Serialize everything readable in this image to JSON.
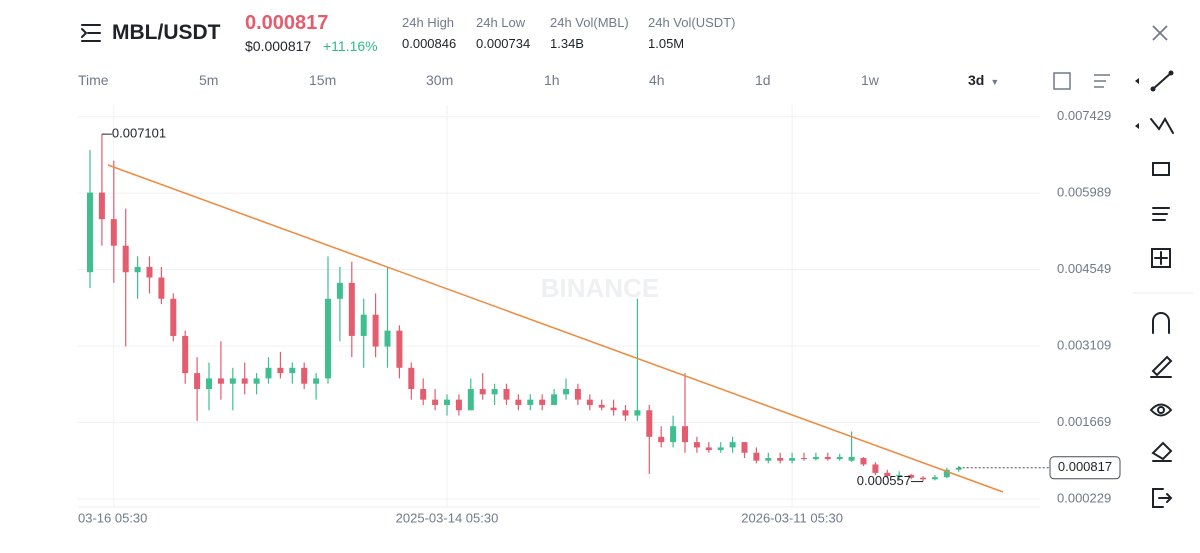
{
  "header": {
    "symbol": "MBL/USDT",
    "price": "0.000817",
    "price_usd": "$0.000817",
    "change": "+11.16%",
    "stats": [
      {
        "label": "24h High",
        "value": "0.000846"
      },
      {
        "label": "24h Low",
        "value": "0.000734"
      },
      {
        "label": "24h Vol(MBL)",
        "value": "1.34B"
      },
      {
        "label": "24h Vol(USDT)",
        "value": "1.05M"
      }
    ]
  },
  "intervals": [
    "Time",
    "5m",
    "15m",
    "30m",
    "1h",
    "4h",
    "1d",
    "1w",
    "3d"
  ],
  "chart_data": {
    "type": "candlestick",
    "watermark": "BINANCE",
    "categories": [
      null,
      null,
      "03-16 05:30",
      null,
      null,
      null,
      null,
      null,
      null,
      null,
      null,
      null,
      null,
      null,
      null,
      null,
      null,
      null,
      null,
      null,
      null,
      null,
      null,
      null,
      null,
      null,
      null,
      null,
      null,
      null,
      "2025-03-14 05:30",
      null,
      null,
      null,
      null,
      null,
      null,
      null,
      null,
      null,
      null,
      null,
      null,
      null,
      null,
      null,
      null,
      null,
      null,
      null,
      null,
      null,
      null,
      null,
      null,
      null,
      null,
      null,
      null,
      "2026-03-11 05:30",
      null,
      null,
      null,
      null,
      null,
      null,
      null,
      null,
      null,
      null,
      null,
      null,
      null,
      null
    ],
    "open": [
      0.0045,
      0.006,
      0.0055,
      0.005,
      0.0045,
      0.0046,
      0.0044,
      0.004,
      0.0033,
      0.0026,
      0.0023,
      0.0025,
      0.0024,
      0.0025,
      0.0024,
      0.0025,
      0.0027,
      0.0026,
      0.0027,
      0.0024,
      0.0025,
      0.004,
      0.0043,
      0.0033,
      0.0037,
      0.0031,
      0.0034,
      0.0027,
      0.0023,
      0.0021,
      0.002,
      0.0021,
      0.0019,
      0.0023,
      0.0022,
      0.0023,
      0.0021,
      0.002,
      0.0021,
      0.002,
      0.0022,
      0.0023,
      0.0021,
      0.002,
      0.00195,
      0.0019,
      0.0018,
      0.0019,
      0.0014,
      0.0013,
      0.0016,
      0.0013,
      0.0012,
      0.00115,
      0.0012,
      0.0013,
      0.0011,
      0.00095,
      0.001,
      0.00095,
      0.001,
      0.00098,
      0.00102,
      0.00098,
      0.00095,
      0.001,
      0.00088,
      0.00072,
      0.00066,
      0.00068,
      0.00063,
      0.0006,
      0.00064,
      0.00078
    ],
    "high": [
      0.0068,
      0.007101,
      0.0066,
      0.0057,
      0.0048,
      0.0048,
      0.0046,
      0.0041,
      0.0034,
      0.0029,
      0.0028,
      0.0032,
      0.0027,
      0.0028,
      0.0026,
      0.0029,
      0.003,
      0.0028,
      0.0028,
      0.0026,
      0.0048,
      0.0046,
      0.0047,
      0.004,
      0.0041,
      0.0046,
      0.0035,
      0.0028,
      0.0025,
      0.0023,
      0.0022,
      0.0022,
      0.0025,
      0.0026,
      0.0024,
      0.0024,
      0.0022,
      0.0022,
      0.0022,
      0.0023,
      0.0025,
      0.0024,
      0.0022,
      0.0021,
      0.0021,
      0.002,
      0.004,
      0.002,
      0.0016,
      0.0018,
      0.0026,
      0.0014,
      0.0013,
      0.0013,
      0.0014,
      0.0013,
      0.0012,
      0.0011,
      0.0011,
      0.0011,
      0.0011,
      0.0011,
      0.0011,
      0.00108,
      0.0015,
      0.00102,
      0.00092,
      0.00078,
      0.00075,
      0.0007,
      0.00066,
      0.00068,
      0.00082,
      0.00085
    ],
    "low": [
      0.0042,
      0.005,
      0.0043,
      0.0031,
      0.004,
      0.0041,
      0.0039,
      0.0032,
      0.0024,
      0.0017,
      0.0019,
      0.0021,
      0.0019,
      0.0022,
      0.0022,
      0.0024,
      0.0025,
      0.0024,
      0.0023,
      0.0021,
      0.0024,
      0.0032,
      0.0029,
      0.0027,
      0.0029,
      0.0027,
      0.0025,
      0.0021,
      0.002,
      0.0019,
      0.0018,
      0.0018,
      0.0019,
      0.0021,
      0.002,
      0.002,
      0.0019,
      0.0019,
      0.0019,
      0.002,
      0.0021,
      0.002,
      0.0019,
      0.0019,
      0.0018,
      0.0017,
      0.0017,
      0.0007,
      0.0012,
      0.0012,
      0.0011,
      0.0011,
      0.0011,
      0.0011,
      0.0011,
      0.001,
      0.0009,
      0.0009,
      0.0009,
      0.0009,
      0.00095,
      0.00095,
      0.00095,
      0.00095,
      0.00093,
      0.00085,
      0.00068,
      0.00062,
      0.0006,
      0.0006,
      0.000557,
      0.00058,
      0.00062,
      0.00074
    ],
    "close": [
      0.006,
      0.0055,
      0.005,
      0.0045,
      0.0046,
      0.0044,
      0.004,
      0.0033,
      0.0026,
      0.0023,
      0.0025,
      0.0024,
      0.0025,
      0.0024,
      0.0025,
      0.0027,
      0.0026,
      0.0027,
      0.0024,
      0.0025,
      0.004,
      0.0043,
      0.0033,
      0.0037,
      0.0031,
      0.0034,
      0.0027,
      0.0023,
      0.0021,
      0.002,
      0.0021,
      0.0019,
      0.0023,
      0.0022,
      0.0023,
      0.0021,
      0.002,
      0.0021,
      0.002,
      0.0022,
      0.0023,
      0.0021,
      0.002,
      0.00195,
      0.0019,
      0.0018,
      0.0019,
      0.0014,
      0.0013,
      0.0016,
      0.0013,
      0.0012,
      0.00115,
      0.0012,
      0.0013,
      0.0011,
      0.00095,
      0.001,
      0.00095,
      0.001,
      0.00098,
      0.00102,
      0.00098,
      0.00102,
      0.00102,
      0.00088,
      0.00072,
      0.00066,
      0.00068,
      0.00063,
      0.0006,
      0.00064,
      0.00078,
      0.000817
    ],
    "up_color": "#3fbf8f",
    "down_color": "#e35d6e",
    "ylim": [
      7.8e-05,
      0.00765
    ],
    "yticks": [
      0.007429,
      0.005989,
      0.004549,
      0.003109,
      0.001669,
      0.000229
    ],
    "grid": true
  }
}
